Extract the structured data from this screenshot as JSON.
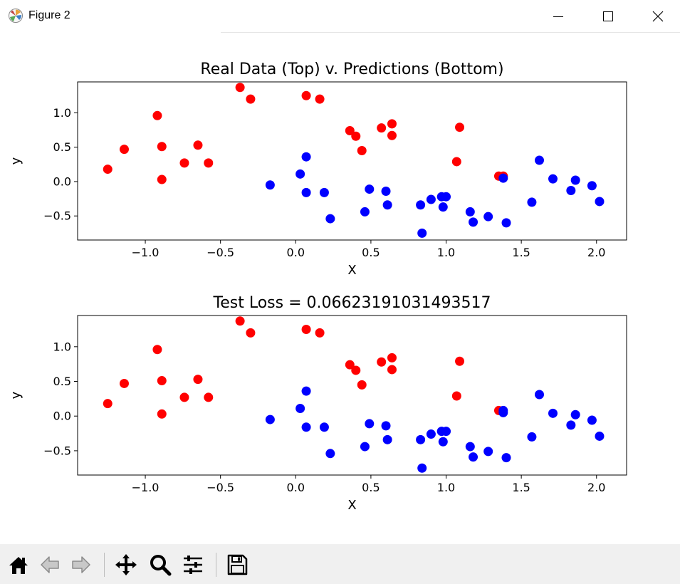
{
  "window": {
    "title": "Figure 2",
    "icons": {
      "app": "matplotlib-icon",
      "minimize": "minimize-icon",
      "maximize": "maximize-icon",
      "close": "close-icon"
    }
  },
  "toolbar": {
    "buttons": [
      "home-icon",
      "back-arrow-icon",
      "forward-arrow-icon",
      "pan-icon",
      "zoom-icon",
      "configure-subplots-icon",
      "save-icon"
    ]
  },
  "colors": {
    "class0": "#0000ff",
    "class1": "#ff0000",
    "toolbar_bg": "#f0f0f0"
  },
  "chart_data": [
    {
      "type": "scatter",
      "title": "Real Data (Top) v. Predictions (Bottom)",
      "xlabel": "X",
      "ylabel": "y",
      "xlim": [
        -1.45,
        2.2
      ],
      "ylim": [
        -0.85,
        1.45
      ],
      "xticks": [
        -1.0,
        -0.5,
        0.0,
        0.5,
        1.0,
        1.5,
        2.0
      ],
      "xtick_labels": [
        "−1.0",
        "−0.5",
        "0.0",
        "0.5",
        "1.0",
        "1.5",
        "2.0"
      ],
      "yticks": [
        -0.5,
        0.0,
        0.5,
        1.0
      ],
      "ytick_labels": [
        "−0.5",
        "0.0",
        "0.5",
        "1.0"
      ],
      "grid": false,
      "series": [
        {
          "color": "#ff0000",
          "points": [
            [
              -1.25,
              0.18
            ],
            [
              -1.14,
              0.47
            ],
            [
              -0.92,
              0.96
            ],
            [
              -0.89,
              0.51
            ],
            [
              -0.89,
              0.03
            ],
            [
              -0.74,
              0.27
            ],
            [
              -0.65,
              0.53
            ],
            [
              -0.58,
              0.27
            ],
            [
              -0.37,
              1.37
            ],
            [
              -0.3,
              1.2
            ],
            [
              0.07,
              1.25
            ],
            [
              0.16,
              1.2
            ],
            [
              0.36,
              0.74
            ],
            [
              0.4,
              0.66
            ],
            [
              0.44,
              0.45
            ],
            [
              0.57,
              0.78
            ],
            [
              0.64,
              0.84
            ],
            [
              0.64,
              0.67
            ],
            [
              1.07,
              0.29
            ],
            [
              1.09,
              0.79
            ],
            [
              1.35,
              0.08
            ],
            [
              1.38,
              0.08
            ]
          ]
        },
        {
          "color": "#0000ff",
          "points": [
            [
              -0.17,
              -0.05
            ],
            [
              0.03,
              0.11
            ],
            [
              0.07,
              0.36
            ],
            [
              0.07,
              -0.16
            ],
            [
              0.19,
              -0.16
            ],
            [
              0.23,
              -0.54
            ],
            [
              0.46,
              -0.44
            ],
            [
              0.49,
              -0.11
            ],
            [
              0.6,
              -0.14
            ],
            [
              0.61,
              -0.34
            ],
            [
              0.83,
              -0.34
            ],
            [
              0.84,
              -0.75
            ],
            [
              0.9,
              -0.26
            ],
            [
              0.97,
              -0.22
            ],
            [
              0.98,
              -0.37
            ],
            [
              1.0,
              -0.22
            ],
            [
              1.16,
              -0.44
            ],
            [
              1.18,
              -0.59
            ],
            [
              1.28,
              -0.51
            ],
            [
              1.38,
              0.05
            ],
            [
              1.4,
              -0.6
            ],
            [
              1.57,
              -0.3
            ],
            [
              1.62,
              0.31
            ],
            [
              1.71,
              0.04
            ],
            [
              1.83,
              -0.13
            ],
            [
              1.86,
              0.02
            ],
            [
              1.97,
              -0.06
            ],
            [
              2.02,
              -0.29
            ]
          ]
        }
      ]
    },
    {
      "type": "scatter",
      "title": "Test Loss = 0.06623191031493517",
      "xlabel": "X",
      "ylabel": "y",
      "xlim": [
        -1.45,
        2.2
      ],
      "ylim": [
        -0.85,
        1.45
      ],
      "xticks": [
        -1.0,
        -0.5,
        0.0,
        0.5,
        1.0,
        1.5,
        2.0
      ],
      "xtick_labels": [
        "−1.0",
        "−0.5",
        "0.0",
        "0.5",
        "1.0",
        "1.5",
        "2.0"
      ],
      "yticks": [
        -0.5,
        0.0,
        0.5,
        1.0
      ],
      "ytick_labels": [
        "−0.5",
        "0.0",
        "0.5",
        "1.0"
      ],
      "grid": false,
      "series": [
        {
          "color": "#ff0000",
          "points": [
            [
              -1.25,
              0.18
            ],
            [
              -1.14,
              0.47
            ],
            [
              -0.92,
              0.96
            ],
            [
              -0.89,
              0.51
            ],
            [
              -0.89,
              0.03
            ],
            [
              -0.74,
              0.27
            ],
            [
              -0.65,
              0.53
            ],
            [
              -0.58,
              0.27
            ],
            [
              -0.37,
              1.37
            ],
            [
              -0.3,
              1.2
            ],
            [
              0.07,
              1.25
            ],
            [
              0.16,
              1.2
            ],
            [
              0.36,
              0.74
            ],
            [
              0.4,
              0.66
            ],
            [
              0.44,
              0.45
            ],
            [
              0.57,
              0.78
            ],
            [
              0.64,
              0.84
            ],
            [
              0.64,
              0.67
            ],
            [
              1.07,
              0.29
            ],
            [
              1.09,
              0.79
            ],
            [
              1.35,
              0.08
            ]
          ]
        },
        {
          "color": "#0000ff",
          "points": [
            [
              -0.17,
              -0.05
            ],
            [
              0.03,
              0.11
            ],
            [
              0.07,
              0.36
            ],
            [
              0.07,
              -0.16
            ],
            [
              0.19,
              -0.16
            ],
            [
              0.23,
              -0.54
            ],
            [
              0.46,
              -0.44
            ],
            [
              0.49,
              -0.11
            ],
            [
              0.6,
              -0.14
            ],
            [
              0.61,
              -0.34
            ],
            [
              0.83,
              -0.34
            ],
            [
              0.84,
              -0.75
            ],
            [
              0.9,
              -0.26
            ],
            [
              0.97,
              -0.22
            ],
            [
              0.98,
              -0.37
            ],
            [
              1.0,
              -0.22
            ],
            [
              1.16,
              -0.44
            ],
            [
              1.18,
              -0.59
            ],
            [
              1.28,
              -0.51
            ],
            [
              1.38,
              0.08
            ],
            [
              1.38,
              0.05
            ],
            [
              1.4,
              -0.6
            ],
            [
              1.57,
              -0.3
            ],
            [
              1.62,
              0.31
            ],
            [
              1.71,
              0.04
            ],
            [
              1.83,
              -0.13
            ],
            [
              1.86,
              0.02
            ],
            [
              1.97,
              -0.06
            ],
            [
              2.02,
              -0.29
            ]
          ]
        }
      ]
    }
  ]
}
